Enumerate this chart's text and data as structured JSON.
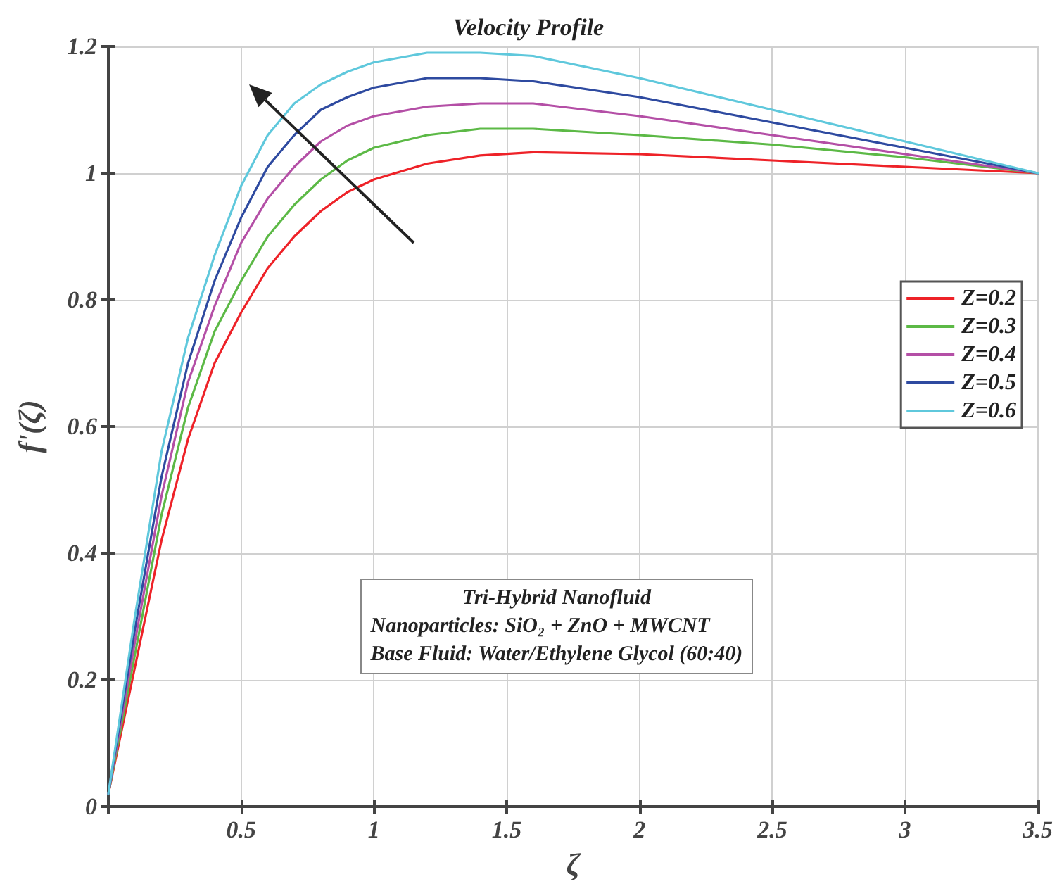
{
  "chart_data": {
    "type": "line",
    "title": "Velocity Profile",
    "xlabel": "ζ",
    "ylabel": "f'(ζ)",
    "x": [
      0,
      0.1,
      0.2,
      0.3,
      0.4,
      0.5,
      0.6,
      0.7,
      0.8,
      0.9,
      1.0,
      1.2,
      1.4,
      1.6,
      2,
      2.5,
      3,
      3.5
    ],
    "series": [
      {
        "name": "Z=0.2",
        "color": "#ee2228",
        "values": [
          0.02,
          0.22,
          0.42,
          0.58,
          0.7,
          0.78,
          0.85,
          0.9,
          0.94,
          0.97,
          0.99,
          1.015,
          1.028,
          1.033,
          1.03,
          1.02,
          1.01,
          1.0
        ]
      },
      {
        "name": "Z=0.3",
        "color": "#5cb946",
        "values": [
          0.02,
          0.24,
          0.46,
          0.63,
          0.75,
          0.83,
          0.9,
          0.95,
          0.99,
          1.02,
          1.04,
          1.06,
          1.07,
          1.07,
          1.06,
          1.045,
          1.025,
          1.0
        ]
      },
      {
        "name": "Z=0.4",
        "color": "#b44fa6",
        "values": [
          0.02,
          0.26,
          0.49,
          0.67,
          0.79,
          0.89,
          0.96,
          1.01,
          1.05,
          1.075,
          1.09,
          1.105,
          1.11,
          1.11,
          1.09,
          1.06,
          1.03,
          1.0
        ]
      },
      {
        "name": "Z=0.5",
        "color": "#2e4aa0",
        "values": [
          0.02,
          0.28,
          0.52,
          0.7,
          0.83,
          0.93,
          1.01,
          1.06,
          1.1,
          1.12,
          1.135,
          1.15,
          1.15,
          1.145,
          1.12,
          1.08,
          1.04,
          1.0
        ]
      },
      {
        "name": "Z=0.6",
        "color": "#5fc8dc",
        "values": [
          0.02,
          0.3,
          0.56,
          0.74,
          0.87,
          0.98,
          1.06,
          1.11,
          1.14,
          1.16,
          1.175,
          1.19,
          1.19,
          1.185,
          1.15,
          1.1,
          1.05,
          1.0
        ]
      }
    ],
    "xlim": [
      0,
      3.5
    ],
    "xticks": [
      {
        "value": 0,
        "label": null
      },
      0.5,
      1,
      1.5,
      2,
      2.5,
      3,
      3.5
    ],
    "ylim": [
      0,
      1.2
    ],
    "yticks": [
      0,
      0.2,
      0.4,
      0.6,
      0.8,
      1,
      1.2
    ],
    "grid": true,
    "legend": "right",
    "marker": "none",
    "line_style": "solid",
    "annotations": [
      "Tri-Hybrid Nanofluid",
      "Nanoparticles:  SiO₂ + ZnO + MWCNT",
      "Base Fluid: Water/Ethylene Glycol (60:40)"
    ]
  }
}
